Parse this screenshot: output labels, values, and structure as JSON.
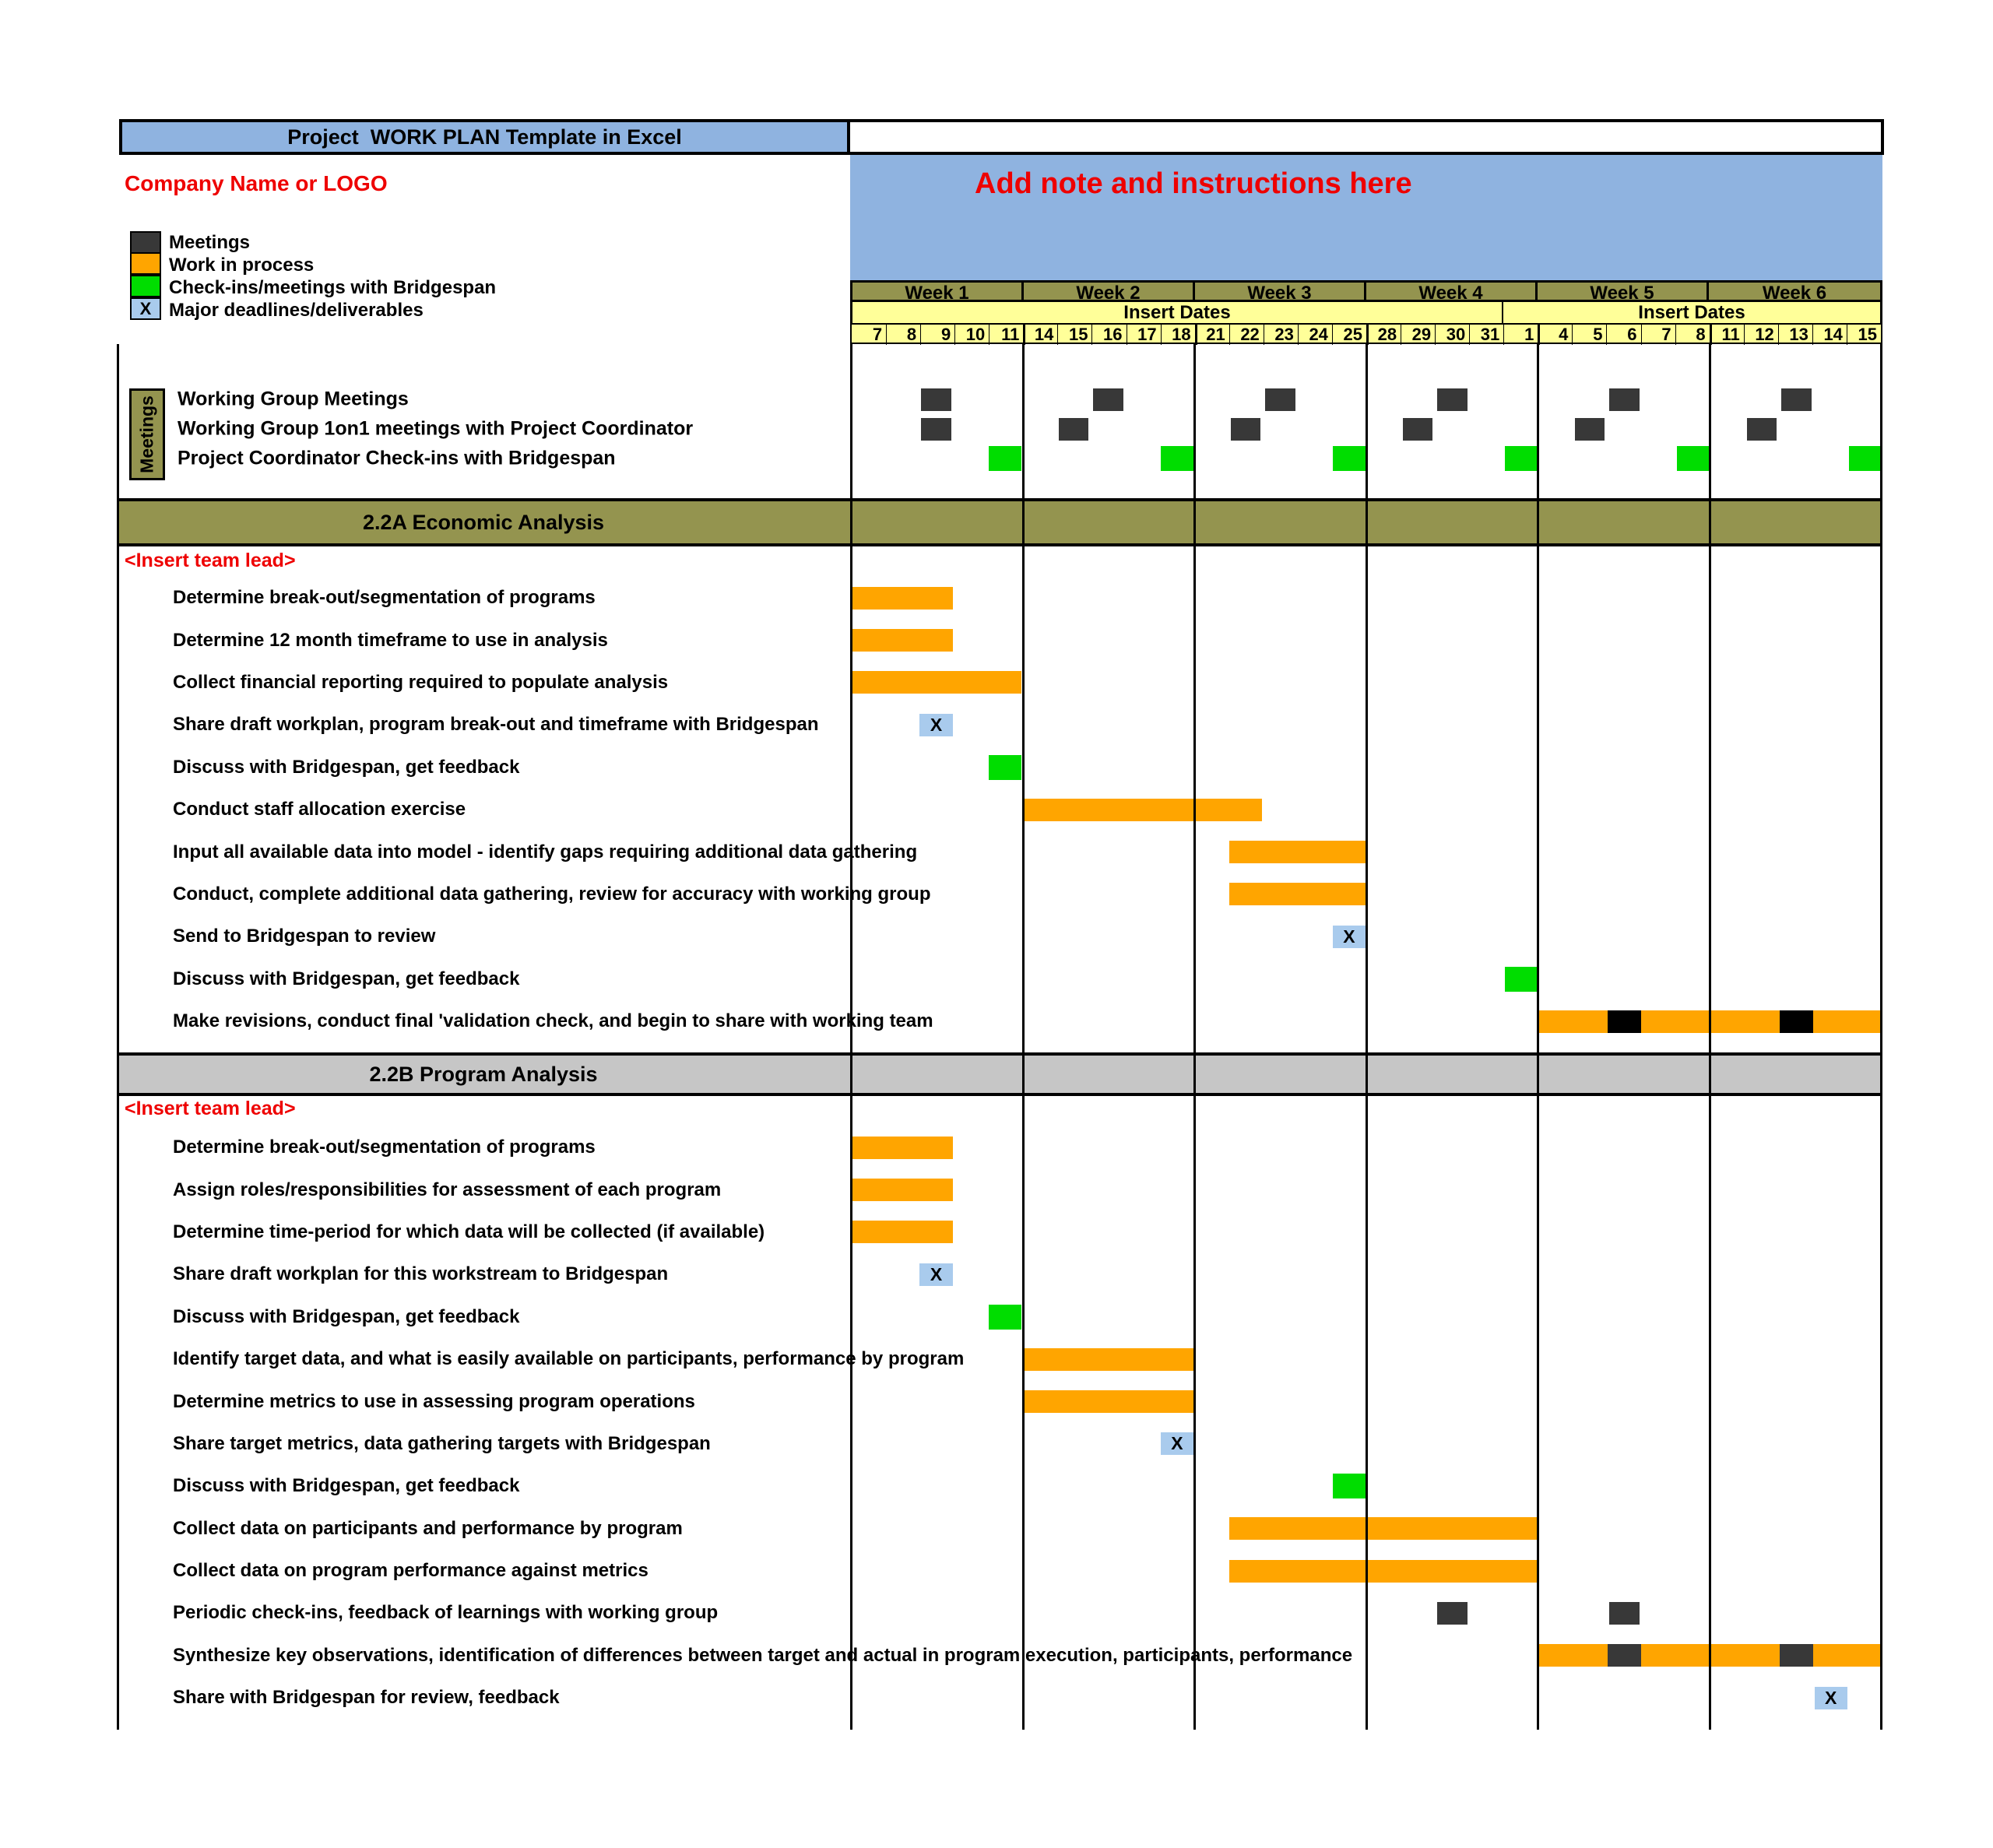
{
  "title": {
    "text": "Project  WORK PLAN Template in Excel"
  },
  "company": {
    "name": "Company Name or LOGO"
  },
  "note": {
    "text": "Add note and instructions here"
  },
  "legend": {
    "items": [
      {
        "type": "meeting",
        "label": "Meetings"
      },
      {
        "type": "work",
        "label": "Work in process"
      },
      {
        "type": "checkin",
        "label": "Check-ins/meetings with Bridgespan"
      },
      {
        "type": "deadline",
        "label": "Major deadlines/deliverables",
        "symbol": "X"
      }
    ]
  },
  "calendar": {
    "weeks": [
      "Week 1",
      "Week 2",
      "Week 3",
      "Week 4",
      "Week 5",
      "Week 6"
    ],
    "insert_dates": [
      {
        "label": "Insert Dates",
        "cols": 19
      },
      {
        "label": "Insert Dates",
        "cols": 11
      }
    ],
    "dates": [
      "7",
      "8",
      "9",
      "10",
      "11",
      "14",
      "15",
      "16",
      "17",
      "18",
      "21",
      "22",
      "23",
      "24",
      "25",
      "28",
      "29",
      "30",
      "31",
      "1",
      "4",
      "5",
      "6",
      "7",
      "8",
      "11",
      "12",
      "13",
      "14",
      "15"
    ]
  },
  "meetings": {
    "group_label": "Meetings",
    "rows": [
      {
        "label": "Working Group Meetings",
        "marks": [
          {
            "t": "mtg",
            "c": 2
          },
          {
            "t": "mtg",
            "c": 7
          },
          {
            "t": "mtg",
            "c": 12
          },
          {
            "t": "mtg",
            "c": 17
          },
          {
            "t": "mtg",
            "c": 22
          },
          {
            "t": "mtg",
            "c": 27
          }
        ]
      },
      {
        "label": "Working Group 1on1 meetings with Project Coordinator",
        "marks": [
          {
            "t": "mtg",
            "c": 2
          },
          {
            "t": "mtg",
            "c": 6
          },
          {
            "t": "mtg",
            "c": 11
          },
          {
            "t": "mtg",
            "c": 16
          },
          {
            "t": "mtg",
            "c": 21
          },
          {
            "t": "mtg",
            "c": 26
          }
        ]
      },
      {
        "label": "Project Coordinator Check-ins with Bridgespan",
        "marks": [
          {
            "t": "chk",
            "c": 4
          },
          {
            "t": "chk",
            "c": 9
          },
          {
            "t": "chk",
            "c": 14
          },
          {
            "t": "chk",
            "c": 19
          },
          {
            "t": "chk",
            "c": 24
          },
          {
            "t": "chk",
            "c": 29
          }
        ]
      }
    ]
  },
  "sections": {
    "a": {
      "title": "2.2A Economic Analysis",
      "lead": "<Insert team lead>",
      "tasks": [
        {
          "label": "Determine break-out/segmentation of programs",
          "marks": [
            {
              "t": "bar",
              "s": 0,
              "e": 2
            }
          ]
        },
        {
          "label": "Determine 12 month timeframe to use in analysis",
          "marks": [
            {
              "t": "bar",
              "s": 0,
              "e": 2
            }
          ]
        },
        {
          "label": "Collect financial reporting required to populate analysis",
          "marks": [
            {
              "t": "bar",
              "s": 0,
              "e": 4
            }
          ]
        },
        {
          "label": "Share draft workplan, program break-out and timeframe with Bridgespan",
          "marks": [
            {
              "t": "x",
              "c": 2
            }
          ]
        },
        {
          "label": "Discuss with Bridgespan, get feedback",
          "marks": [
            {
              "t": "chk",
              "c": 4
            }
          ]
        },
        {
          "label": "Conduct staff allocation exercise",
          "marks": [
            {
              "t": "bar",
              "s": 5,
              "e": 11
            }
          ]
        },
        {
          "label": "Input all available data into model - identify gaps requiring additional data gathering",
          "marks": [
            {
              "t": "bar",
              "s": 11,
              "e": 14
            }
          ]
        },
        {
          "label": "Conduct, complete additional data gathering, review for accuracy with working group",
          "marks": [
            {
              "t": "bar",
              "s": 11,
              "e": 14
            }
          ]
        },
        {
          "label": "Send to Bridgespan to review",
          "marks": [
            {
              "t": "x",
              "c": 14
            }
          ]
        },
        {
          "label": "Discuss with Bridgespan, get feedback",
          "marks": [
            {
              "t": "chk",
              "c": 19
            }
          ]
        },
        {
          "label": "Make revisions, conduct final 'validation check, and begin to share with working team",
          "marks": [
            {
              "t": "bar",
              "s": 20,
              "e": 29
            },
            {
              "t": "blk",
              "c": 22
            },
            {
              "t": "blk",
              "c": 27
            }
          ]
        }
      ]
    },
    "b": {
      "title": "2.2B Program Analysis",
      "lead": "<Insert team lead>",
      "tasks": [
        {
          "label": "Determine  break-out/segmentation of programs",
          "marks": [
            {
              "t": "bar",
              "s": 0,
              "e": 2
            }
          ]
        },
        {
          "label": "Assign roles/responsibilities for assessment of each program",
          "marks": [
            {
              "t": "bar",
              "s": 0,
              "e": 2
            }
          ]
        },
        {
          "label": "Determine time-period for which data will be collected (if available)",
          "marks": [
            {
              "t": "bar",
              "s": 0,
              "e": 2
            }
          ]
        },
        {
          "label": "Share draft workplan for this workstream to Bridgespan",
          "marks": [
            {
              "t": "x",
              "c": 2
            }
          ]
        },
        {
          "label": "Discuss with Bridgespan, get feedback",
          "marks": [
            {
              "t": "chk",
              "c": 4
            }
          ]
        },
        {
          "label": "Identify target data, and what is easily available on participants, performance by program",
          "marks": [
            {
              "t": "bar",
              "s": 5,
              "e": 9
            }
          ]
        },
        {
          "label": "Determine metrics to use in assessing program operations",
          "marks": [
            {
              "t": "bar",
              "s": 5,
              "e": 9
            }
          ]
        },
        {
          "label": "Share target metrics, data gathering targets with Bridgespan",
          "marks": [
            {
              "t": "x",
              "c": 9
            }
          ]
        },
        {
          "label": "Discuss with Bridgespan, get feedback",
          "marks": [
            {
              "t": "chk",
              "c": 14
            }
          ]
        },
        {
          "label": "Collect data on participants and performance by program",
          "marks": [
            {
              "t": "bar",
              "s": 11,
              "e": 19
            }
          ]
        },
        {
          "label": "Collect data on program performance against metrics",
          "marks": [
            {
              "t": "bar",
              "s": 11,
              "e": 19
            }
          ]
        },
        {
          "label": "Periodic check-ins, feedback of learnings with working group",
          "marks": [
            {
              "t": "mtg",
              "c": 17
            },
            {
              "t": "mtg",
              "c": 22
            }
          ]
        },
        {
          "label": "Synthesize key observations, identification of differences between target and actual in program execution, participants, performance",
          "marks": [
            {
              "t": "bar",
              "s": 20,
              "e": 29
            },
            {
              "t": "blkg",
              "c": 22
            },
            {
              "t": "blkg",
              "c": 27
            }
          ]
        },
        {
          "label": "Share with Bridgespan for review, feedback",
          "marks": [
            {
              "t": "x",
              "c": 28
            }
          ]
        }
      ]
    }
  },
  "colors": {
    "meeting": "#383838",
    "work": "#FFA500",
    "checkin": "#00DD00",
    "deadline": "#A9CBED",
    "olive": "#94944F",
    "yellow": "#FFFF99",
    "blue": "#8FB3E0",
    "gray": "#C6C6C6",
    "red": "#EE0000"
  }
}
